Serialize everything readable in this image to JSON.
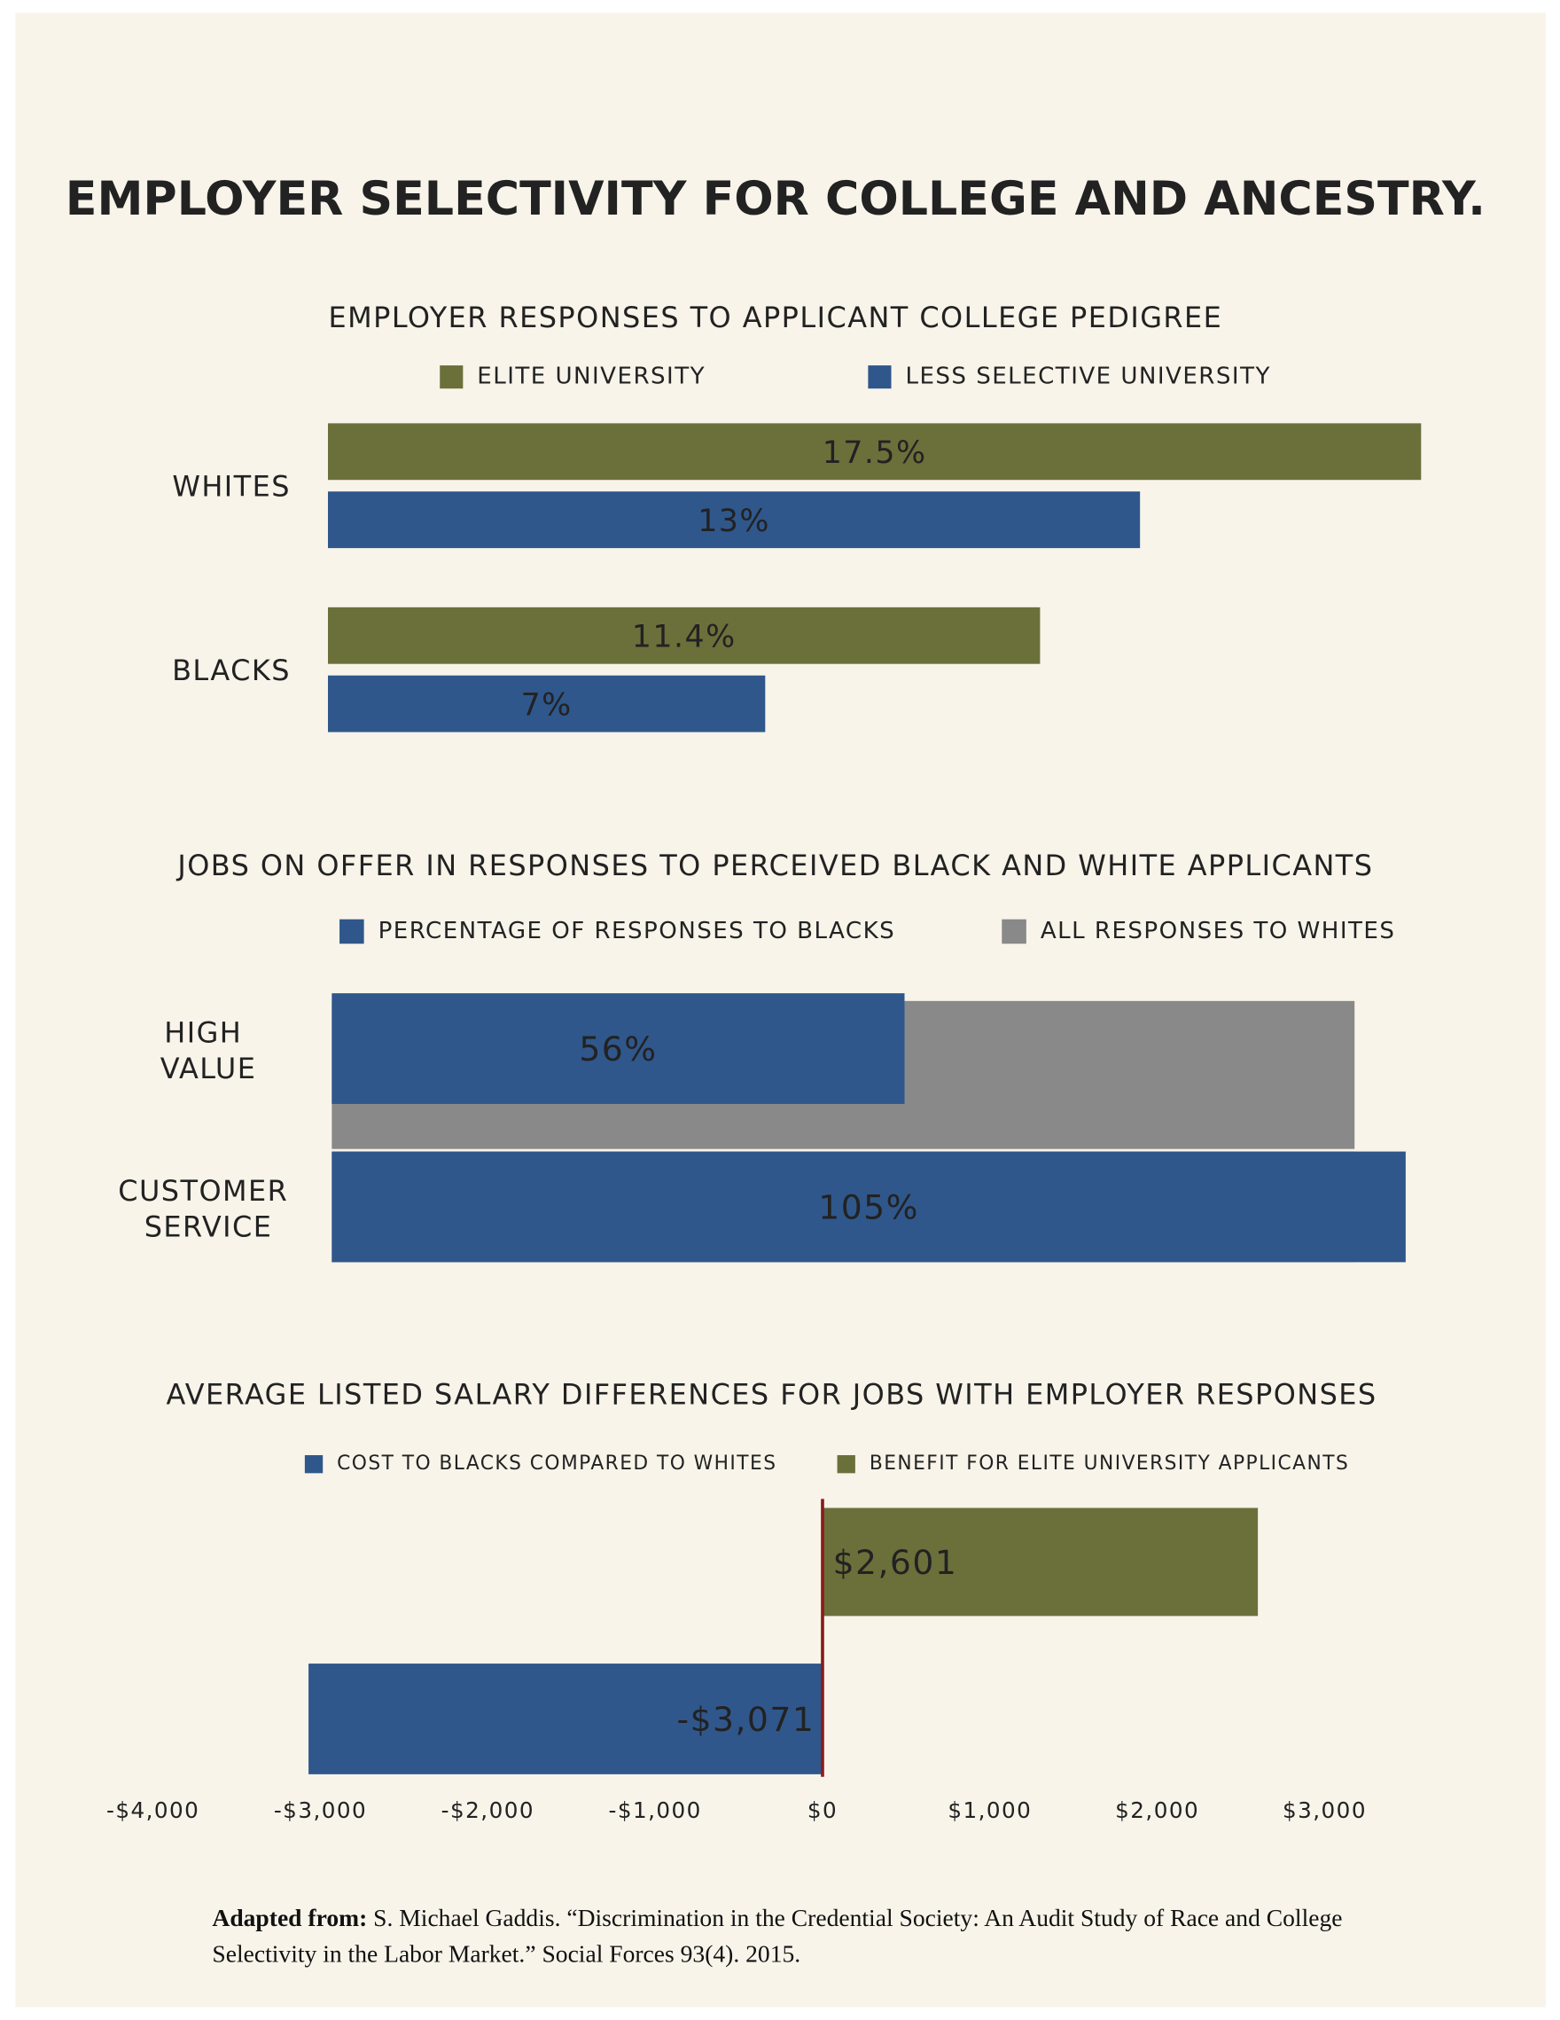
{
  "title": "EMPLOYER SELECTIVITY FOR COLLEGE AND ANCESTRY.",
  "chart_data": [
    {
      "type": "hbar",
      "title": "EMPLOYER RESPONSES TO APPLICANT COLLEGE PEDIGREE",
      "categories": [
        "WHITES",
        "BLACKS"
      ],
      "series": [
        {
          "name": "ELITE UNIVERSITY",
          "color": "#6b703b",
          "values": [
            17.5,
            11.4
          ],
          "value_labels": [
            "17.5%",
            "11.4%"
          ]
        },
        {
          "name": "LESS SELECTIVE UNIVERSITY",
          "color": "#2f578b",
          "values": [
            13,
            7
          ],
          "value_labels": [
            "13%",
            "7%"
          ]
        }
      ]
    },
    {
      "type": "overlay",
      "title": "JOBS ON OFFER IN RESPONSES TO PERCEIVED BLACK AND WHITE APPLICANTS",
      "categories": [
        "HIGH VALUE",
        "CUSTOMER SERVICE"
      ],
      "series": [
        {
          "name": "PERCENTAGE OF RESPONSES TO BLACKS",
          "color": "#2f578b",
          "values": [
            56,
            105
          ],
          "value_labels": [
            "56%",
            "105%"
          ]
        },
        {
          "name": "ALL RESPONSES TO WHITES",
          "color": "#898989",
          "values": [
            100,
            100
          ]
        }
      ]
    },
    {
      "type": "diverging",
      "title": "AVERAGE LISTED SALARY DIFFERENCES FOR JOBS WITH EMPLOYER RESPONSES",
      "series": [
        {
          "name": "COST TO BLACKS COMPARED TO WHITES",
          "color": "#2f578b",
          "values": [
            -3071
          ],
          "value_labels": [
            "-$3,071"
          ]
        },
        {
          "name": "BENEFIT FOR ELITE UNIVERSITY APPLICANTS",
          "color": "#6b703b",
          "values": [
            2601
          ],
          "value_labels": [
            "$2,601"
          ]
        }
      ],
      "xlim": [
        -4000,
        3000
      ],
      "xticks": [
        {
          "value": -4000,
          "label": "-$4,000"
        },
        {
          "value": -3000,
          "label": "-$3,000"
        },
        {
          "value": -2000,
          "label": "-$2,000"
        },
        {
          "value": -1000,
          "label": "-$1,000"
        },
        {
          "value": 0,
          "label": "$0"
        },
        {
          "value": 1000,
          "label": "$1,000"
        },
        {
          "value": 2000,
          "label": "$2,000"
        },
        {
          "value": 3000,
          "label": "$3,000"
        }
      ],
      "zero_line_color": "#8b1a1a"
    }
  ],
  "source": {
    "label": "Adapted from:",
    "text": "S. Michael Gaddis. “Discrimination in the Credential Society: An Audit Study of Race and College Selectivity in the Labor Market.” Social Forces 93(4). 2015."
  }
}
